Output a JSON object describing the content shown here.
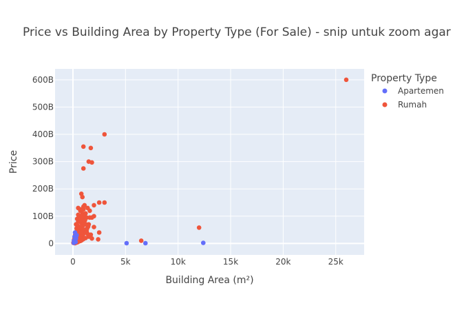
{
  "chart_data": {
    "type": "scatter",
    "title": "Price vs Building Area by Property Type (For Sale) - snip untuk zoom agar",
    "xlabel": "Building Area (m²)",
    "ylabel": "Price",
    "xlim": [
      -1700,
      27700
    ],
    "ylim": [
      -42000000000,
      640000000000
    ],
    "x_ticks": [
      0,
      5000,
      10000,
      15000,
      20000,
      25000
    ],
    "x_tick_labels": [
      "0",
      "5k",
      "10k",
      "15k",
      "20k",
      "25k"
    ],
    "y_ticks": [
      0,
      100000000000,
      200000000000,
      300000000000,
      400000000000,
      500000000000,
      600000000000
    ],
    "y_tick_labels": [
      "0",
      "100B",
      "200B",
      "300B",
      "400B",
      "500B",
      "600B"
    ],
    "grid": true,
    "legend": {
      "title": "Property Type",
      "placement": "right"
    },
    "series": [
      {
        "name": "Apartemen",
        "color": "#636efa",
        "points": [
          [
            5100,
            1000000000
          ],
          [
            6900,
            1000000000
          ],
          [
            12400,
            2000000000
          ],
          [
            100,
            10000000000
          ],
          [
            150,
            25000000000
          ],
          [
            200,
            40000000000
          ],
          [
            250,
            5000000000
          ],
          [
            300,
            18000000000
          ],
          [
            80,
            2000000000
          ],
          [
            350,
            30000000000
          ]
        ]
      },
      {
        "name": "Rumah",
        "color": "#ef553b",
        "points": [
          [
            26000,
            600000000000
          ],
          [
            3000,
            400000000000
          ],
          [
            1000,
            355000000000
          ],
          [
            1700,
            350000000000
          ],
          [
            1500,
            300000000000
          ],
          [
            1800,
            297000000000
          ],
          [
            1000,
            275000000000
          ],
          [
            800,
            182000000000
          ],
          [
            900,
            170000000000
          ],
          [
            2500,
            150000000000
          ],
          [
            3000,
            150000000000
          ],
          [
            2000,
            140000000000
          ],
          [
            1100,
            140000000000
          ],
          [
            1000,
            135000000000
          ],
          [
            500,
            130000000000
          ],
          [
            1400,
            130000000000
          ],
          [
            1600,
            120000000000
          ],
          [
            2000,
            100000000000
          ],
          [
            1300,
            95000000000
          ],
          [
            1800,
            95000000000
          ],
          [
            12000,
            58000000000
          ],
          [
            6500,
            10000000000
          ],
          [
            2500,
            40000000000
          ],
          [
            2400,
            15000000000
          ],
          [
            2000,
            60000000000
          ],
          [
            1500,
            70000000000
          ],
          [
            1200,
            110000000000
          ],
          [
            700,
            120000000000
          ],
          [
            600,
            100000000000
          ],
          [
            900,
            110000000000
          ],
          [
            400,
            90000000000
          ],
          [
            500,
            80000000000
          ],
          [
            300,
            70000000000
          ],
          [
            700,
            60000000000
          ],
          [
            800,
            75000000000
          ],
          [
            1000,
            90000000000
          ],
          [
            1100,
            50000000000
          ],
          [
            1300,
            45000000000
          ],
          [
            1400,
            35000000000
          ],
          [
            1500,
            25000000000
          ],
          [
            1200,
            20000000000
          ],
          [
            900,
            30000000000
          ],
          [
            600,
            45000000000
          ],
          [
            700,
            35000000000
          ],
          [
            500,
            25000000000
          ],
          [
            400,
            50000000000
          ],
          [
            300,
            40000000000
          ],
          [
            200,
            30000000000
          ],
          [
            250,
            15000000000
          ],
          [
            150,
            20000000000
          ],
          [
            100,
            12000000000
          ],
          [
            80,
            5000000000
          ],
          [
            50,
            2000000000
          ],
          [
            120,
            8000000000
          ],
          [
            180,
            6000000000
          ],
          [
            220,
            10000000000
          ],
          [
            350,
            12000000000
          ],
          [
            450,
            15000000000
          ],
          [
            550,
            18000000000
          ],
          [
            650,
            20000000000
          ],
          [
            750,
            22000000000
          ],
          [
            850,
            28000000000
          ],
          [
            950,
            32000000000
          ],
          [
            1050,
            38000000000
          ],
          [
            1150,
            42000000000
          ],
          [
            1250,
            48000000000
          ],
          [
            1350,
            55000000000
          ],
          [
            1450,
            62000000000
          ],
          [
            1600,
            28000000000
          ],
          [
            1700,
            32000000000
          ],
          [
            1800,
            18000000000
          ],
          [
            300,
            3000000000
          ],
          [
            400,
            4000000000
          ],
          [
            500,
            6000000000
          ],
          [
            600,
            8000000000
          ],
          [
            700,
            9000000000
          ],
          [
            800,
            11000000000
          ],
          [
            900,
            14000000000
          ],
          [
            1000,
            16000000000
          ],
          [
            350,
            55000000000
          ],
          [
            450,
            65000000000
          ],
          [
            550,
            52000000000
          ],
          [
            650,
            58000000000
          ],
          [
            750,
            85000000000
          ],
          [
            850,
            95000000000
          ],
          [
            950,
            65000000000
          ],
          [
            1050,
            75000000000
          ],
          [
            1150,
            85000000000
          ],
          [
            1250,
            70000000000
          ],
          [
            500,
            105000000000
          ],
          [
            1000,
            125000000000
          ],
          [
            700,
            125000000000
          ],
          [
            1100,
            100000000000
          ],
          [
            1600,
            95000000000
          ],
          [
            900,
            50000000000
          ],
          [
            800,
            40000000000
          ],
          [
            200,
            1000000000
          ],
          [
            150,
            3000000000
          ],
          [
            250,
            7000000000
          ]
        ]
      }
    ]
  }
}
